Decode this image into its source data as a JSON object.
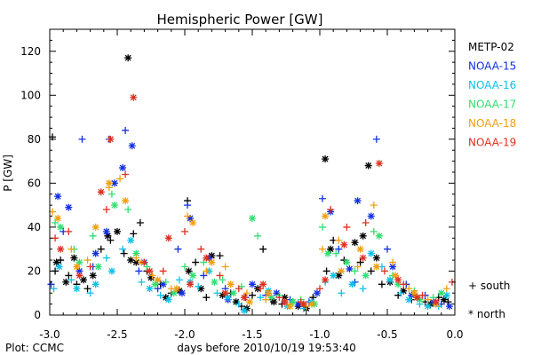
{
  "chart_data": {
    "type": "scatter",
    "title": "Hemispheric Power [GW]",
    "ylabel": "P [GW]",
    "xlabel": "days before 2010/10/19 19:53:40",
    "credit": "Plot: CCMC",
    "xlim": [
      -3.0,
      0.0
    ],
    "ylim": [
      0,
      130
    ],
    "x_ticks": [
      -3.0,
      -2.5,
      -2.0,
      -1.5,
      -1.0,
      -0.5,
      0.0
    ],
    "x_tick_labels": [
      "-3.0",
      "-2.5",
      "-2.0",
      "-1.5",
      "-1.0",
      "-0.5",
      "0.0"
    ],
    "y_ticks": [
      0,
      20,
      40,
      60,
      80,
      100,
      120
    ],
    "y_tick_labels": [
      "0",
      "20",
      "40",
      "60",
      "80",
      "100",
      "120"
    ],
    "marker_legend": [
      {
        "label": "+ south",
        "hemisphere": "south"
      },
      {
        "label": "* north",
        "hemisphere": "north"
      }
    ],
    "legend_position": "right",
    "series": [
      {
        "name": "METP-02",
        "color": "#000000",
        "south": [
          [
            -2.98,
            81
          ],
          [
            -2.96,
            20
          ],
          [
            -2.92,
            25
          ],
          [
            -2.86,
            18
          ],
          [
            -2.8,
            14
          ],
          [
            -2.72,
            12
          ],
          [
            -2.62,
            30
          ],
          [
            -2.55,
            34
          ],
          [
            -2.45,
            28
          ],
          [
            -2.38,
            37
          ],
          [
            -2.33,
            42
          ],
          [
            -2.28,
            20
          ],
          [
            -2.18,
            14
          ],
          [
            -2.1,
            10
          ],
          [
            -1.98,
            52
          ],
          [
            -1.92,
            24
          ],
          [
            -1.84,
            8
          ],
          [
            -1.74,
            27
          ],
          [
            -1.66,
            10
          ],
          [
            -1.58,
            4
          ],
          [
            -1.5,
            9
          ],
          [
            -1.42,
            30
          ],
          [
            -1.36,
            7
          ],
          [
            -1.28,
            5
          ],
          [
            -1.2,
            6
          ],
          [
            -1.12,
            4
          ],
          [
            -1.05,
            8
          ],
          [
            -0.95,
            20
          ],
          [
            -0.9,
            34
          ],
          [
            -0.82,
            25
          ],
          [
            -0.7,
            24
          ],
          [
            -0.62,
            20
          ],
          [
            -0.54,
            14
          ],
          [
            -0.42,
            9
          ],
          [
            -0.32,
            7
          ],
          [
            -0.22,
            6
          ],
          [
            -0.12,
            8
          ],
          [
            -0.05,
            6
          ]
        ],
        "north": [
          [
            -2.95,
            24
          ],
          [
            -2.88,
            15
          ],
          [
            -2.82,
            26
          ],
          [
            -2.75,
            16
          ],
          [
            -2.68,
            18
          ],
          [
            -2.57,
            36
          ],
          [
            -2.5,
            38
          ],
          [
            -2.42,
            117
          ],
          [
            -2.4,
            25
          ],
          [
            -2.36,
            24
          ],
          [
            -2.25,
            17
          ],
          [
            -2.14,
            8
          ],
          [
            -2.04,
            11
          ],
          [
            -1.97,
            20
          ],
          [
            -1.88,
            12
          ],
          [
            -1.8,
            27
          ],
          [
            -1.72,
            9
          ],
          [
            -1.62,
            6
          ],
          [
            -1.54,
            3
          ],
          [
            -1.46,
            12
          ],
          [
            -1.34,
            6
          ],
          [
            -1.26,
            8
          ],
          [
            -1.16,
            4
          ],
          [
            -1.1,
            3
          ],
          [
            -0.96,
            71
          ],
          [
            -0.92,
            30
          ],
          [
            -0.86,
            18
          ],
          [
            -0.74,
            33
          ],
          [
            -0.68,
            36
          ],
          [
            -0.64,
            68
          ],
          [
            -0.58,
            26
          ],
          [
            -0.48,
            15
          ],
          [
            -0.38,
            11
          ],
          [
            -0.28,
            8
          ],
          [
            -0.18,
            5
          ],
          [
            -0.08,
            7
          ]
        ]
      },
      {
        "name": "NOAA-15",
        "color": "#1430e0",
        "south": [
          [
            -2.99,
            14
          ],
          [
            -2.9,
            38
          ],
          [
            -2.76,
            80
          ],
          [
            -2.68,
            22
          ],
          [
            -2.56,
            80
          ],
          [
            -2.44,
            84
          ],
          [
            -2.34,
            20
          ],
          [
            -2.2,
            12
          ],
          [
            -2.05,
            30
          ],
          [
            -1.98,
            50
          ],
          [
            -1.86,
            18
          ],
          [
            -1.7,
            12
          ],
          [
            -1.55,
            8
          ],
          [
            -1.4,
            9
          ],
          [
            -1.22,
            7
          ],
          [
            -1.08,
            6
          ],
          [
            -0.98,
            53
          ],
          [
            -0.86,
            30
          ],
          [
            -0.74,
            15
          ],
          [
            -0.58,
            80
          ],
          [
            -0.5,
            30
          ],
          [
            -0.36,
            14
          ],
          [
            -0.22,
            9
          ],
          [
            -0.1,
            5
          ]
        ],
        "north": [
          [
            -2.94,
            54
          ],
          [
            -2.86,
            49
          ],
          [
            -2.78,
            20
          ],
          [
            -2.66,
            28
          ],
          [
            -2.58,
            38
          ],
          [
            -2.52,
            60
          ],
          [
            -2.46,
            67
          ],
          [
            -2.39,
            77
          ],
          [
            -2.3,
            24
          ],
          [
            -2.16,
            14
          ],
          [
            -2.02,
            10
          ],
          [
            -1.96,
            44
          ],
          [
            -1.82,
            26
          ],
          [
            -1.68,
            7
          ],
          [
            -1.5,
            14
          ],
          [
            -1.32,
            10
          ],
          [
            -1.16,
            5
          ],
          [
            -1.02,
            10
          ],
          [
            -0.92,
            47
          ],
          [
            -0.78,
            21
          ],
          [
            -0.72,
            52
          ],
          [
            -0.62,
            45
          ],
          [
            -0.46,
            22
          ],
          [
            -0.32,
            9
          ],
          [
            -0.16,
            6
          ],
          [
            -0.04,
            4
          ]
        ]
      },
      {
        "name": "NOAA-16",
        "color": "#10c0e8",
        "south": [
          [
            -2.97,
            12
          ],
          [
            -2.84,
            16
          ],
          [
            -2.7,
            10
          ],
          [
            -2.58,
            26
          ],
          [
            -2.46,
            30
          ],
          [
            -2.32,
            15
          ],
          [
            -2.18,
            9
          ],
          [
            -2.04,
            16
          ],
          [
            -1.9,
            13
          ],
          [
            -1.76,
            10
          ],
          [
            -1.6,
            5
          ],
          [
            -1.44,
            8
          ],
          [
            -1.26,
            6
          ],
          [
            -1.12,
            3
          ],
          [
            -0.96,
            15
          ],
          [
            -0.84,
            10
          ],
          [
            -0.68,
            12
          ],
          [
            -0.54,
            22
          ],
          [
            -0.4,
            10
          ],
          [
            -0.26,
            5
          ],
          [
            -0.12,
            4
          ]
        ],
        "north": [
          [
            -2.93,
            22
          ],
          [
            -2.8,
            12
          ],
          [
            -2.66,
            14
          ],
          [
            -2.54,
            20
          ],
          [
            -2.4,
            34
          ],
          [
            -2.26,
            12
          ],
          [
            -2.12,
            7
          ],
          [
            -1.96,
            15
          ],
          [
            -1.82,
            20
          ],
          [
            -1.68,
            8
          ],
          [
            -1.56,
            2
          ],
          [
            -1.38,
            11
          ],
          [
            -1.24,
            4
          ],
          [
            -1.06,
            6
          ],
          [
            -0.9,
            18
          ],
          [
            -0.76,
            14
          ],
          [
            -0.62,
            28
          ],
          [
            -0.48,
            16
          ],
          [
            -0.34,
            7
          ],
          [
            -0.2,
            4
          ],
          [
            -0.06,
            9
          ]
        ]
      },
      {
        "name": "NOAA-17",
        "color": "#30e070",
        "south": [
          [
            -2.96,
            42
          ],
          [
            -2.82,
            30
          ],
          [
            -2.68,
            36
          ],
          [
            -2.54,
            55
          ],
          [
            -2.42,
            48
          ],
          [
            -2.28,
            22
          ],
          [
            -2.14,
            15
          ],
          [
            -2.0,
            22
          ],
          [
            -1.86,
            24
          ],
          [
            -1.72,
            16
          ],
          [
            -1.58,
            13
          ],
          [
            -1.46,
            36
          ],
          [
            -1.3,
            9
          ],
          [
            -1.14,
            7
          ],
          [
            -0.98,
            40
          ],
          [
            -0.88,
            28
          ],
          [
            -0.74,
            20
          ],
          [
            -0.6,
            38
          ],
          [
            -0.46,
            18
          ],
          [
            -0.3,
            11
          ],
          [
            -0.16,
            8
          ]
        ],
        "north": [
          [
            -2.92,
            40
          ],
          [
            -2.78,
            24
          ],
          [
            -2.64,
            22
          ],
          [
            -2.52,
            50
          ],
          [
            -2.36,
            28
          ],
          [
            -2.22,
            14
          ],
          [
            -2.08,
            10
          ],
          [
            -1.94,
            18
          ],
          [
            -1.78,
            15
          ],
          [
            -1.64,
            10
          ],
          [
            -1.5,
            44
          ],
          [
            -1.36,
            8
          ],
          [
            -1.2,
            6
          ],
          [
            -1.04,
            5
          ],
          [
            -0.94,
            28
          ],
          [
            -0.8,
            24
          ],
          [
            -0.66,
            18
          ],
          [
            -0.56,
            36
          ],
          [
            -0.42,
            14
          ],
          [
            -0.26,
            7
          ],
          [
            -0.1,
            10
          ]
        ]
      },
      {
        "name": "NOAA-18",
        "color": "#f0a010",
        "south": [
          [
            -2.98,
            47
          ],
          [
            -2.84,
            30
          ],
          [
            -2.72,
            25
          ],
          [
            -2.56,
            58
          ],
          [
            -2.48,
            62
          ],
          [
            -2.36,
            26
          ],
          [
            -2.24,
            18
          ],
          [
            -2.1,
            12
          ],
          [
            -1.98,
            45
          ],
          [
            -1.84,
            20
          ],
          [
            -1.7,
            22
          ],
          [
            -1.54,
            10
          ],
          [
            -1.4,
            7
          ],
          [
            -1.24,
            5
          ],
          [
            -1.1,
            4
          ],
          [
            -0.98,
            30
          ],
          [
            -0.86,
            34
          ],
          [
            -0.72,
            22
          ],
          [
            -0.6,
            50
          ],
          [
            -0.46,
            24
          ],
          [
            -0.34,
            12
          ],
          [
            -0.2,
            7
          ],
          [
            -0.06,
            12
          ]
        ],
        "north": [
          [
            -2.94,
            44
          ],
          [
            -2.8,
            22
          ],
          [
            -2.66,
            40
          ],
          [
            -2.56,
            60
          ],
          [
            -2.44,
            52
          ],
          [
            -2.32,
            24
          ],
          [
            -2.2,
            16
          ],
          [
            -2.06,
            12
          ],
          [
            -1.94,
            42
          ],
          [
            -1.8,
            24
          ],
          [
            -1.66,
            14
          ],
          [
            -1.52,
            6
          ],
          [
            -1.38,
            10
          ],
          [
            -1.22,
            4
          ],
          [
            -1.06,
            5
          ],
          [
            -0.96,
            45
          ],
          [
            -0.84,
            20
          ],
          [
            -0.7,
            30
          ],
          [
            -0.58,
            22
          ],
          [
            -0.44,
            18
          ],
          [
            -0.3,
            10
          ],
          [
            -0.14,
            5
          ]
        ]
      },
      {
        "name": "NOAA-19",
        "color": "#e03020",
        "south": [
          [
            -2.96,
            35
          ],
          [
            -2.86,
            38
          ],
          [
            -2.7,
            22
          ],
          [
            -2.58,
            48
          ],
          [
            -2.44,
            64
          ],
          [
            -2.3,
            24
          ],
          [
            -2.16,
            20
          ],
          [
            -2.0,
            38
          ],
          [
            -1.88,
            30
          ],
          [
            -1.74,
            18
          ],
          [
            -1.6,
            12
          ],
          [
            -1.44,
            12
          ],
          [
            -1.3,
            8
          ],
          [
            -1.14,
            6
          ],
          [
            -1.0,
            12
          ],
          [
            -0.92,
            48
          ],
          [
            -0.8,
            40
          ],
          [
            -0.66,
            42
          ],
          [
            -0.52,
            20
          ],
          [
            -0.38,
            14
          ],
          [
            -0.24,
            9
          ],
          [
            -0.02,
            15
          ]
        ],
        "north": [
          [
            -2.92,
            30
          ],
          [
            -2.78,
            18
          ],
          [
            -2.62,
            56
          ],
          [
            -2.55,
            80
          ],
          [
            -2.38,
            99
          ],
          [
            -2.26,
            20
          ],
          [
            -2.12,
            35
          ],
          [
            -1.96,
            14
          ],
          [
            -1.84,
            26
          ],
          [
            -1.7,
            10
          ],
          [
            -1.56,
            8
          ],
          [
            -1.42,
            14
          ],
          [
            -1.26,
            6
          ],
          [
            -1.12,
            5
          ],
          [
            -0.96,
            16
          ],
          [
            -0.82,
            32
          ],
          [
            -0.68,
            26
          ],
          [
            -0.56,
            69
          ],
          [
            -0.42,
            16
          ],
          [
            -0.28,
            8
          ],
          [
            -0.14,
            6
          ]
        ]
      }
    ]
  }
}
